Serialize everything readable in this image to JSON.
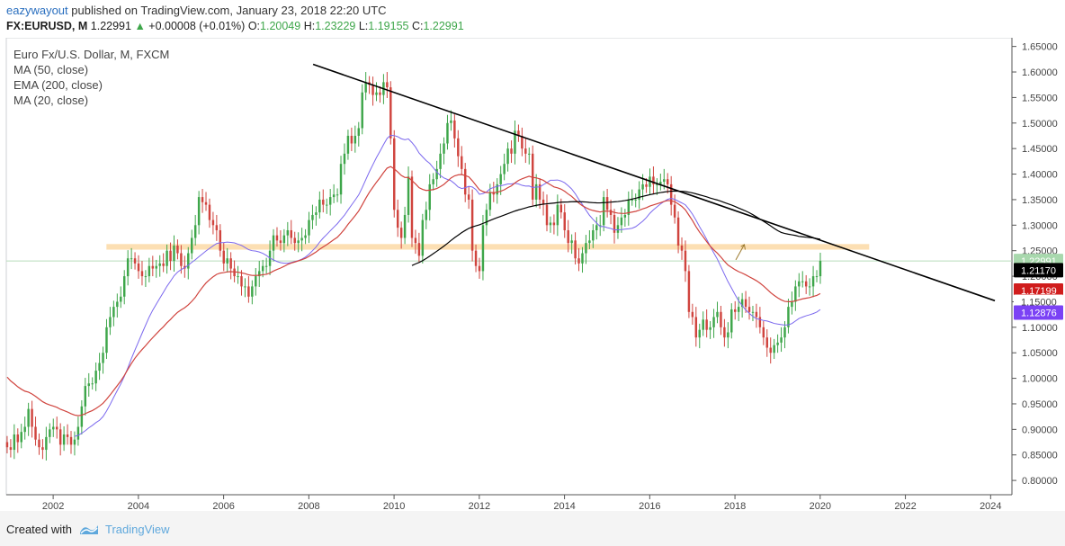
{
  "header": {
    "author": "eazywayout",
    "published": "published on TradingView.com, January 23, 2018 22:20 UTC",
    "symbol": "FX:EURUSD, M",
    "last": "1.22991",
    "change": "+0.00008 (+0.01%)",
    "ohlc": [
      {
        "label": "O:",
        "value": "1.20049"
      },
      {
        "label": "H:",
        "value": "1.23229"
      },
      {
        "label": "L:",
        "value": "1.19155"
      },
      {
        "label": "C:",
        "value": "1.22991"
      }
    ]
  },
  "legend": {
    "title": "Euro Fx/U.S. Dollar, M, FXCM",
    "items": [
      "MA (50, close)",
      "EMA (200, close)",
      "MA (20, close)"
    ]
  },
  "footer": {
    "created_with": "Created with",
    "brand": "TradingView"
  },
  "chart_data": {
    "type": "candlestick",
    "x_range": [
      2000.9,
      2024.5
    ],
    "y_range": [
      0.772,
      1.667
    ],
    "x_ticks": [
      2002,
      2004,
      2006,
      2008,
      2010,
      2012,
      2014,
      2016,
      2018,
      2020,
      2022,
      2024
    ],
    "y_ticks": [
      "0.80000",
      "0.85000",
      "0.90000",
      "0.95000",
      "1.00000",
      "1.05000",
      "1.10000",
      "1.15000",
      "1.20000",
      "1.25000",
      "1.30000",
      "1.35000",
      "1.40000",
      "1.45000",
      "1.50000",
      "1.55000",
      "1.60000",
      "1.65000"
    ],
    "colors": {
      "up": "#3ea64a",
      "down": "#d0443e",
      "ma50": "#000000",
      "ema200": "#d0443e",
      "ma20": "#7b68ee",
      "zone": "#fbd9a6",
      "trend": "#000000"
    },
    "price_labels": [
      {
        "text": "1.22991",
        "value": 1.22991,
        "color": "#a8d8ad"
      },
      {
        "text": "1.21170",
        "value": 1.2117,
        "color": "#000000"
      },
      {
        "text": "1.17199",
        "value": 1.17199,
        "color": "#d01c1c"
      },
      {
        "text": "1.15000",
        "value": 1.15,
        "color": "#ffffff"
      },
      {
        "text": "1.12876",
        "value": 1.12876,
        "color": "#7b42f5"
      }
    ],
    "candles_close": [
      0.865,
      0.86,
      0.89,
      0.875,
      0.895,
      0.905,
      0.94,
      0.905,
      0.88,
      0.865,
      0.86,
      0.885,
      0.9,
      0.905,
      0.9,
      0.87,
      0.89,
      0.885,
      0.87,
      0.88,
      0.905,
      0.945,
      0.985,
      0.99,
      0.99,
      1.015,
      1.03,
      1.05,
      1.1,
      1.12,
      1.14,
      1.15,
      1.16,
      1.2,
      1.235,
      1.235,
      1.225,
      1.21,
      1.2,
      1.2,
      1.22,
      1.215,
      1.22,
      1.225,
      1.22,
      1.25,
      1.23,
      1.26,
      1.245,
      1.22,
      1.215,
      1.245,
      1.275,
      1.3,
      1.355,
      1.345,
      1.34,
      1.31,
      1.3,
      1.29,
      1.25,
      1.225,
      1.235,
      1.215,
      1.2,
      1.2,
      1.18,
      1.18,
      1.16,
      1.18,
      1.2,
      1.21,
      1.22,
      1.22,
      1.25,
      1.28,
      1.27,
      1.265,
      1.28,
      1.29,
      1.275,
      1.265,
      1.27,
      1.275,
      1.28,
      1.31,
      1.32,
      1.325,
      1.35,
      1.34,
      1.34,
      1.355,
      1.36,
      1.36,
      1.42,
      1.44,
      1.475,
      1.46,
      1.475,
      1.49,
      1.56,
      1.58,
      1.575,
      1.555,
      1.56,
      1.555,
      1.58,
      1.57,
      1.47,
      1.33,
      1.295,
      1.275,
      1.32,
      1.395,
      1.275,
      1.265,
      1.24,
      1.31,
      1.33,
      1.38,
      1.39,
      1.41,
      1.44,
      1.46,
      1.5,
      1.505,
      1.47,
      1.435,
      1.41,
      1.36,
      1.35,
      1.25,
      1.22,
      1.21,
      1.3,
      1.33,
      1.365,
      1.36,
      1.38,
      1.4,
      1.42,
      1.45,
      1.44,
      1.485,
      1.475,
      1.45,
      1.44,
      1.44,
      1.35,
      1.38,
      1.35,
      1.34,
      1.3,
      1.305,
      1.3,
      1.34,
      1.325,
      1.29,
      1.265,
      1.27,
      1.235,
      1.225,
      1.245,
      1.265,
      1.27,
      1.29,
      1.3,
      1.3,
      1.355,
      1.33,
      1.32,
      1.285,
      1.3,
      1.315,
      1.32,
      1.35,
      1.35,
      1.35,
      1.37,
      1.38,
      1.375,
      1.395,
      1.38,
      1.38,
      1.385,
      1.39,
      1.38,
      1.34,
      1.315,
      1.26,
      1.25,
      1.21,
      1.13,
      1.12,
      1.08,
      1.095,
      1.115,
      1.095,
      1.1,
      1.12,
      1.13,
      1.1,
      1.08,
      1.09,
      1.135,
      1.13,
      1.14,
      1.155,
      1.14,
      1.13,
      1.13,
      1.12,
      1.1,
      1.08,
      1.06,
      1.05,
      1.065,
      1.07,
      1.08,
      1.1,
      1.14,
      1.15,
      1.18,
      1.19,
      1.19,
      1.18,
      1.18,
      1.2,
      1.2,
      1.23
    ]
  }
}
